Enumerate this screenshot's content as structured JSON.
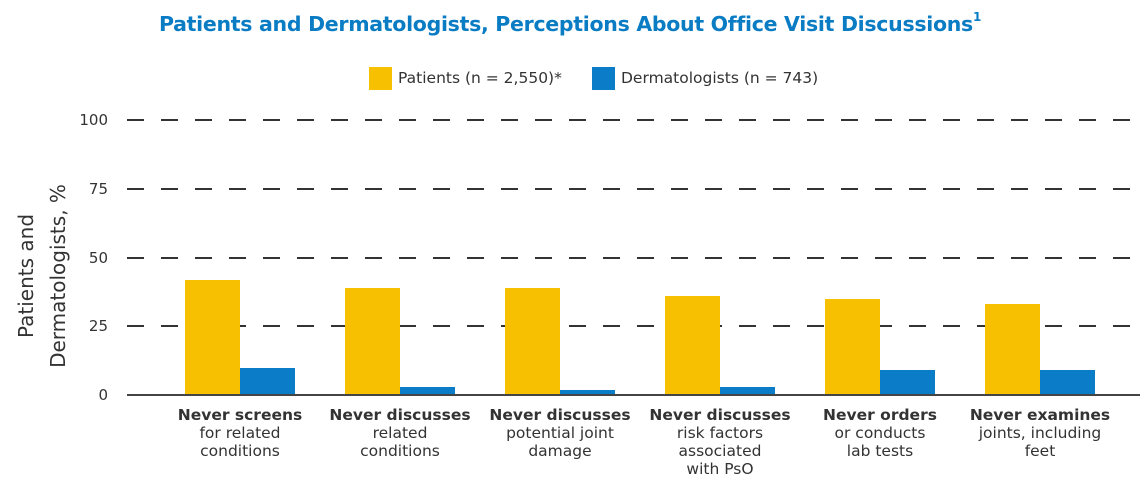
{
  "title": "Patients and Dermatologists, Perceptions About Office Visit Discussions",
  "title_sup": "1",
  "legend": [
    {
      "label": "Patients (n = 2,550)*",
      "color": "#f7c000"
    },
    {
      "label": "Dermatologists (n = 743)",
      "color": "#0a7cc8"
    }
  ],
  "y_axis": {
    "label_line1": "Patients and",
    "label_line2": "Dermatologists, %",
    "ticks": [
      "100",
      "75",
      "50",
      "25",
      "0"
    ]
  },
  "categories": [
    {
      "bold": "Never screens",
      "rest": [
        "for related",
        "conditions"
      ]
    },
    {
      "bold": "Never discusses",
      "rest": [
        "related",
        "conditions"
      ]
    },
    {
      "bold": "Never discusses",
      "rest": [
        "potential joint",
        "damage"
      ]
    },
    {
      "bold": "Never discusses",
      "rest": [
        "risk factors",
        "associated",
        "with PsO"
      ]
    },
    {
      "bold": "Never orders",
      "rest": [
        "or conducts",
        "lab tests"
      ]
    },
    {
      "bold": "Never examines",
      "rest": [
        "joints, including",
        "feet"
      ]
    }
  ],
  "chart_data": {
    "type": "bar",
    "title": "Patients and Dermatologists, Perceptions About Office Visit Discussions",
    "categories": [
      "Never screens for related conditions",
      "Never discusses related conditions",
      "Never discusses potential joint damage",
      "Never discusses risk factors associated with PsO",
      "Never orders or conducts lab tests",
      "Never examines joints, including feet"
    ],
    "series": [
      {
        "name": "Patients (n = 2,550)*",
        "color": "#f7c000",
        "values": [
          42,
          39,
          39,
          36,
          35,
          33
        ]
      },
      {
        "name": "Dermatologists (n = 743)",
        "color": "#0a7cc8",
        "values": [
          10,
          3,
          2,
          3,
          9,
          9
        ]
      }
    ],
    "xlabel": "",
    "ylabel": "Patients and Dermatologists, %",
    "ylim": [
      0,
      100
    ],
    "yticks": [
      0,
      25,
      50,
      75,
      100
    ],
    "grid": "dashed horizontal",
    "legend_position": "top"
  }
}
